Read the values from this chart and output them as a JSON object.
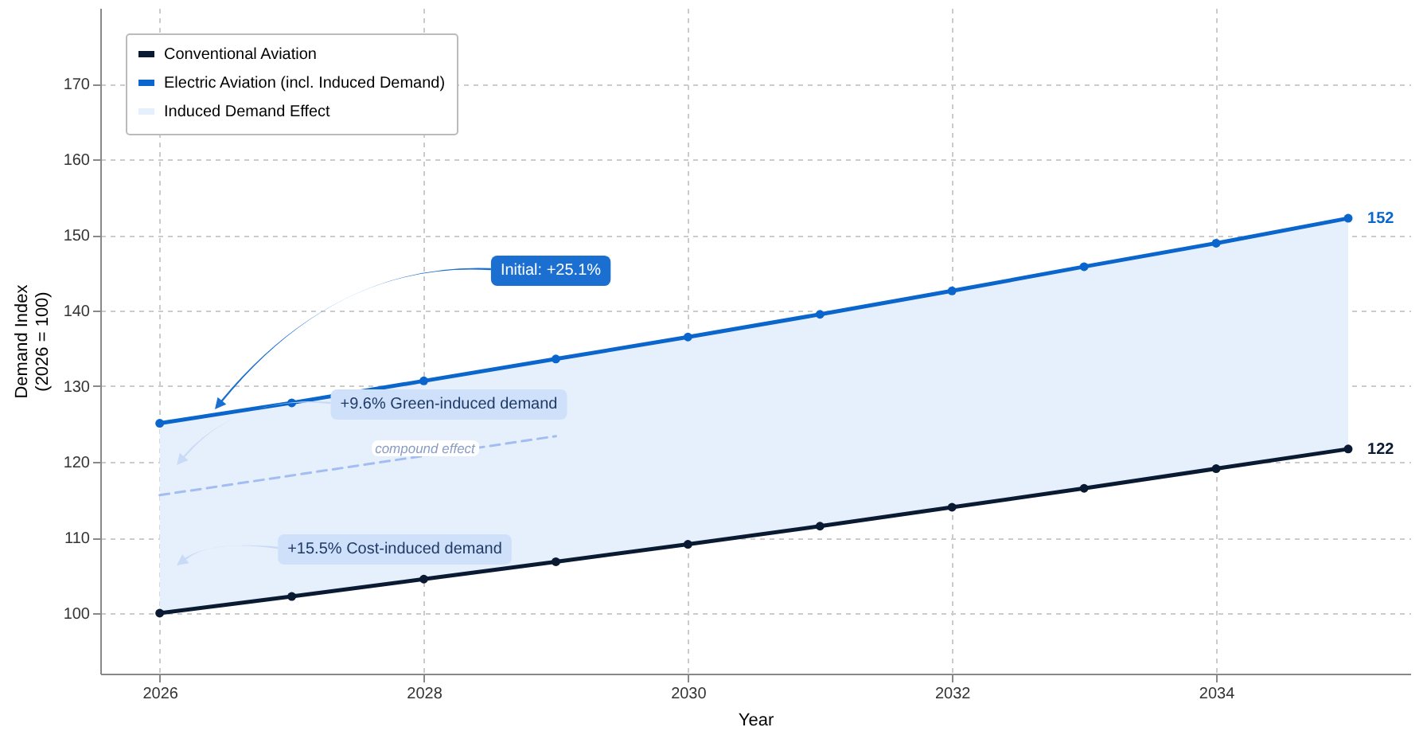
{
  "chart_data": {
    "type": "line",
    "xlabel": "Year",
    "ylabel": "Demand Index\n(2026 = 100)",
    "x": [
      2026,
      2027,
      2028,
      2029,
      2030,
      2031,
      2032,
      2033,
      2034,
      2035
    ],
    "series": [
      {
        "name": "Conventional Aviation",
        "color": "#0b1a33",
        "marker": "circle",
        "values": [
          100,
          102.2,
          104.5,
          106.8,
          109.1,
          111.5,
          114.0,
          116.5,
          119.1,
          121.7
        ],
        "value_labels": [
          null,
          null,
          null,
          null,
          null,
          null,
          null,
          null,
          null,
          "122"
        ]
      },
      {
        "name": "Electric Aviation (incl. Induced Demand)",
        "color": "#0a66cc",
        "marker": "circle",
        "values": [
          125.1,
          127.8,
          130.7,
          133.6,
          136.5,
          139.5,
          142.6,
          145.8,
          148.9,
          152.2
        ],
        "value_labels": [
          null,
          null,
          null,
          null,
          null,
          null,
          null,
          null,
          null,
          "152"
        ],
        "lower": [
          100,
          102.2,
          104.5,
          106.8,
          109.1,
          111.5,
          114.0,
          116.5,
          119.1,
          121.7
        ],
        "upper": [
          125.1,
          127.8,
          130.7,
          133.6,
          136.5,
          139.5,
          142.6,
          145.8,
          148.9,
          152.2
        ]
      },
      {
        "color": "#a3bdf2",
        "line_style": "dashed",
        "marker": "none",
        "x": [
          2026,
          2029
        ],
        "values": [
          115.6,
          123.4
        ]
      },
      {
        "name": "Induced Demand Effect",
        "type": "area",
        "color": "#e6f0fc",
        "values": [
          null,
          null,
          null,
          null,
          null,
          null,
          null,
          null,
          null,
          null
        ]
      }
    ],
    "annotations": [
      "Initial: +25.1%",
      "+9.6% Green-induced demand",
      "+15.5% Cost-induced demand",
      "compound effect"
    ],
    "xlim": [
      2025.55,
      2035.47
    ],
    "ylim": [
      92,
      180
    ],
    "xticks": [
      2026,
      2028,
      2030,
      2032,
      2034
    ],
    "yticks": [
      100,
      110,
      120,
      130,
      140,
      150,
      160,
      170
    ],
    "grid": true,
    "legend": "top left"
  }
}
